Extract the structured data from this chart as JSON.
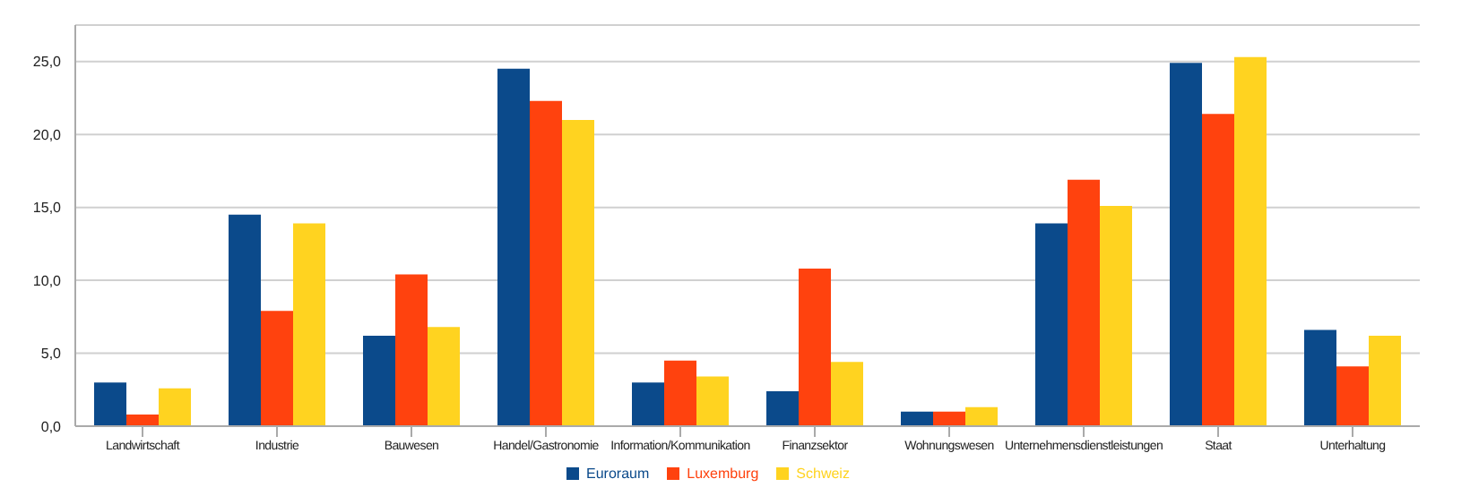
{
  "chart_data": {
    "type": "bar",
    "categories": [
      "Landwirtschaft",
      "Industrie",
      "Bauwesen",
      "Handel/Gastronomie",
      "Information/Kommunikation",
      "Finanzsektor",
      "Wohnungswesen",
      "Unternehmensdienstleistungen",
      "Staat",
      "Unterhaltung"
    ],
    "series": [
      {
        "name": "Euroraum",
        "color": "#0b4a8b",
        "values": [
          3.0,
          14.5,
          6.2,
          24.5,
          3.0,
          2.4,
          1.0,
          13.9,
          24.9,
          6.6
        ]
      },
      {
        "name": "Luxemburg",
        "color": "#ff420e",
        "values": [
          0.8,
          7.9,
          10.4,
          22.3,
          4.5,
          10.8,
          1.0,
          16.9,
          21.4,
          4.1
        ]
      },
      {
        "name": "Schweiz",
        "color": "#ffd320",
        "values": [
          2.6,
          13.9,
          6.8,
          21.0,
          3.4,
          4.4,
          1.3,
          15.1,
          25.3,
          6.2
        ]
      }
    ],
    "ylim": [
      0,
      27.5
    ],
    "yticks": [
      {
        "value": 0,
        "label": "0,0"
      },
      {
        "value": 5,
        "label": "5,0"
      },
      {
        "value": 10,
        "label": "10,0"
      },
      {
        "value": 15,
        "label": "15,0"
      },
      {
        "value": 20,
        "label": "20,0"
      },
      {
        "value": 25,
        "label": "25,0"
      }
    ],
    "grid": "y",
    "legend": "bottom"
  }
}
